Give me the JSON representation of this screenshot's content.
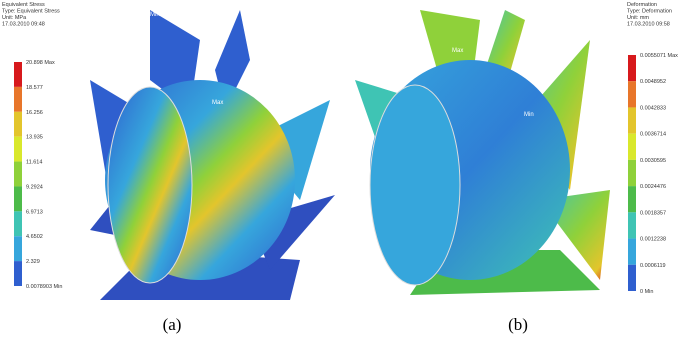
{
  "panels": [
    {
      "legend": {
        "title": "Equivalent Stress",
        "type": "Type: Equivalent Stress",
        "unit": "Unit: MPa",
        "date": "17.03.2010 09:48",
        "labels": [
          "20.898 Max",
          "18.577",
          "16.256",
          "13.935",
          "11.614",
          "9.2924",
          "6.9713",
          "4.6502",
          "2.329",
          "0.0078903 Min"
        ],
        "colors": [
          "#d7191c",
          "#e8762a",
          "#e3c52c",
          "#d9e82c",
          "#8fd13a",
          "#4dbb4a",
          "#3fc4b4",
          "#36a6dc",
          "#2f5fcf"
        ]
      },
      "annotations": [
        "Min",
        "Max"
      ],
      "caption": "(a)"
    },
    {
      "legend": {
        "title": "Deformation",
        "type": "Type: Deformation",
        "unit": "Unit: mm",
        "date": "17.03.2010 09:58",
        "labels": [
          "0.0055071 Max",
          "0.0048952",
          "0.0042833",
          "0.0036714",
          "0.0030595",
          "0.0024476",
          "0.0018357",
          "0.0012238",
          "0.0006119",
          "0 Min"
        ],
        "colors": [
          "#d7191c",
          "#e8762a",
          "#e3c52c",
          "#d9e82c",
          "#8fd13a",
          "#4dbb4a",
          "#3fc4b4",
          "#36a6dc",
          "#2f5fcf"
        ]
      },
      "annotations": [
        "Max",
        "Min"
      ],
      "caption": "(b)"
    }
  ]
}
